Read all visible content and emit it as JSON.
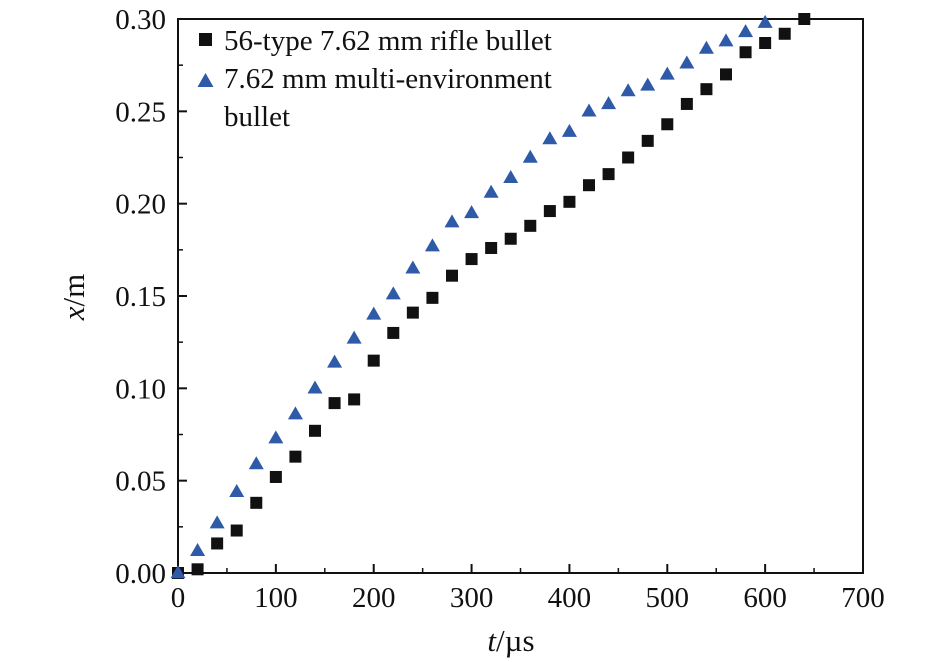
{
  "chart_data": {
    "type": "scatter",
    "title": "",
    "xlabel_var": "t",
    "xlabel_unit": "/µs",
    "ylabel_var": "x",
    "ylabel_unit": "/m",
    "xlim": [
      0,
      700
    ],
    "ylim": [
      0,
      0.3
    ],
    "xticks": [
      "0",
      "100",
      "200",
      "300",
      "400",
      "500",
      "600",
      "700"
    ],
    "yticks": [
      "0.00",
      "0.05",
      "0.10",
      "0.15",
      "0.20",
      "0.25",
      "0.30"
    ],
    "grid": false,
    "legend_position": "top-left",
    "legend": {
      "line1": "56-type 7.62 mm rifle bullet",
      "line2a": "7.62 mm multi-environment",
      "line2b": "bullet"
    },
    "series": [
      {
        "name": "56-type 7.62 mm rifle bullet",
        "marker": "square",
        "color": "#111111",
        "x": [
          0,
          20,
          40,
          60,
          80,
          100,
          120,
          140,
          160,
          180,
          200,
          220,
          240,
          260,
          280,
          300,
          320,
          340,
          360,
          380,
          400,
          420,
          440,
          460,
          480,
          500,
          520,
          540,
          560,
          580,
          600,
          620,
          640
        ],
        "y": [
          0.0,
          0.002,
          0.016,
          0.023,
          0.038,
          0.052,
          0.063,
          0.077,
          0.092,
          0.094,
          0.115,
          0.13,
          0.141,
          0.149,
          0.161,
          0.17,
          0.176,
          0.181,
          0.188,
          0.196,
          0.201,
          0.21,
          0.216,
          0.225,
          0.234,
          0.243,
          0.254,
          0.262,
          0.27,
          0.282,
          0.287,
          0.292,
          0.3
        ]
      },
      {
        "name": "7.62 mm multi-environment bullet",
        "marker": "triangle",
        "color": "#2f5aa8",
        "x": [
          0,
          20,
          40,
          60,
          80,
          100,
          120,
          140,
          160,
          180,
          200,
          220,
          240,
          260,
          280,
          300,
          320,
          340,
          360,
          380,
          400,
          420,
          440,
          460,
          480,
          500,
          520,
          540,
          560,
          580,
          600
        ],
        "y": [
          0.0,
          0.012,
          0.027,
          0.044,
          0.059,
          0.073,
          0.086,
          0.1,
          0.114,
          0.127,
          0.14,
          0.151,
          0.165,
          0.177,
          0.19,
          0.195,
          0.206,
          0.214,
          0.225,
          0.235,
          0.239,
          0.25,
          0.254,
          0.261,
          0.264,
          0.27,
          0.276,
          0.284,
          0.288,
          0.293,
          0.298
        ]
      }
    ]
  }
}
